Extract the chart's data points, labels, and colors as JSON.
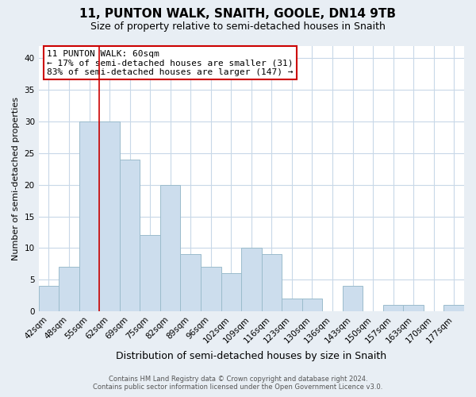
{
  "title": "11, PUNTON WALK, SNAITH, GOOLE, DN14 9TB",
  "subtitle": "Size of property relative to semi-detached houses in Snaith",
  "xlabel": "Distribution of semi-detached houses by size in Snaith",
  "ylabel": "Number of semi-detached properties",
  "bar_labels": [
    "42sqm",
    "48sqm",
    "55sqm",
    "62sqm",
    "69sqm",
    "75sqm",
    "82sqm",
    "89sqm",
    "96sqm",
    "102sqm",
    "109sqm",
    "116sqm",
    "123sqm",
    "130sqm",
    "136sqm",
    "143sqm",
    "150sqm",
    "157sqm",
    "163sqm",
    "170sqm",
    "177sqm"
  ],
  "bar_values": [
    4,
    7,
    30,
    30,
    24,
    12,
    20,
    9,
    7,
    6,
    10,
    9,
    2,
    2,
    0,
    4,
    0,
    1,
    1,
    0,
    1
  ],
  "bar_color": "#ccdded",
  "bar_edge_color": "#9bbccc",
  "highlight_line_color": "#cc0000",
  "annotation_title": "11 PUNTON WALK: 60sqm",
  "annotation_line1": "← 17% of semi-detached houses are smaller (31)",
  "annotation_line2": "83% of semi-detached houses are larger (147) →",
  "annotation_box_color": "#ffffff",
  "annotation_box_edge": "#cc0000",
  "ylim": [
    0,
    42
  ],
  "yticks": [
    0,
    5,
    10,
    15,
    20,
    25,
    30,
    35,
    40
  ],
  "footer_line1": "Contains HM Land Registry data © Crown copyright and database right 2024.",
  "footer_line2": "Contains public sector information licensed under the Open Government Licence v3.0.",
  "background_color": "#e8eef4",
  "plot_bg_color": "#ffffff",
  "grid_color": "#c8d8e8",
  "title_fontsize": 11,
  "subtitle_fontsize": 9,
  "xlabel_fontsize": 9,
  "ylabel_fontsize": 8,
  "tick_fontsize": 7.5
}
